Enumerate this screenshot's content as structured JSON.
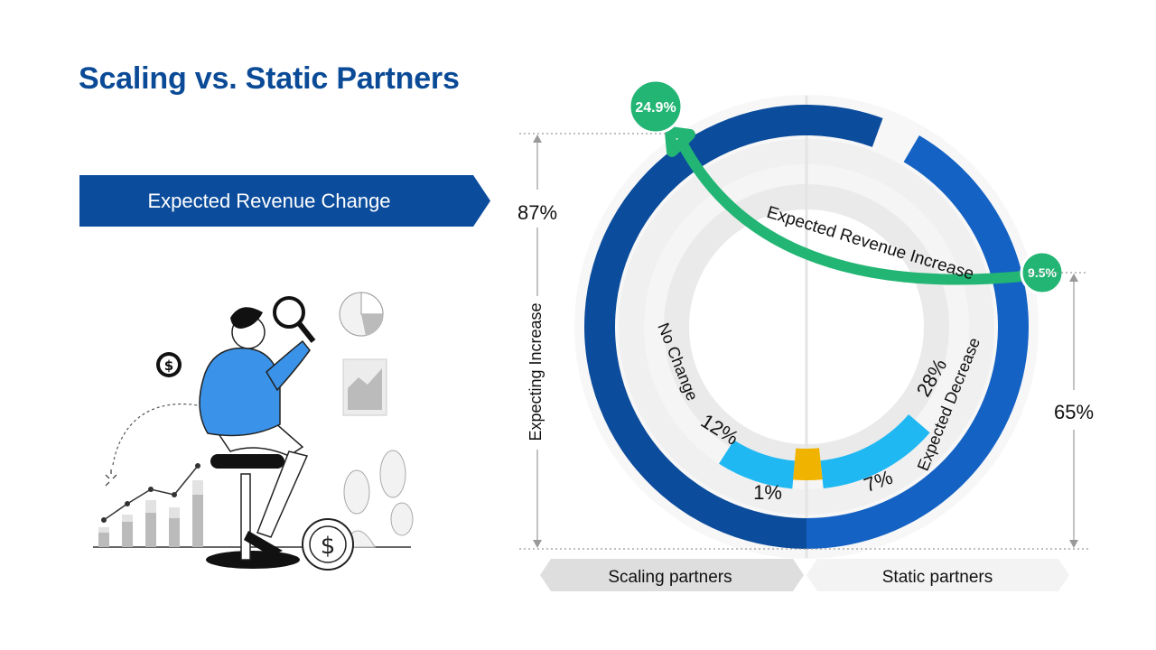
{
  "title": "Scaling vs. Static Partners",
  "banner": {
    "label": "Expected Revenue Change"
  },
  "colors": {
    "title": "#0a4a96",
    "banner": "#0b4c9c",
    "scaling_increase": "#0b4c9c",
    "static_increase": "#1462c4",
    "no_change": "#20b8f2",
    "decrease": "#f0b400",
    "growth_arrow": "#22b573",
    "track": "#f2f2f2"
  },
  "chart_data": {
    "type": "pie",
    "groups": [
      "Scaling partners",
      "Static partners"
    ],
    "series": [
      {
        "name": "Expecting Increase",
        "values": [
          87,
          65
        ]
      },
      {
        "name": "No Change",
        "values": [
          12,
          28
        ]
      },
      {
        "name": "Expected Decrease",
        "values": [
          1,
          7
        ]
      }
    ],
    "ring_labels": {
      "increase": "Expecting Increase",
      "no_change": "No Change",
      "decrease": "Expected Decrease"
    },
    "value_labels": {
      "scaling_increase": "87%",
      "static_increase": "65%",
      "scaling_no_change": "12%",
      "static_no_change": "28%",
      "scaling_decrease": "1%",
      "static_decrease": "7%"
    },
    "revenue_increase": {
      "label": "Expected Revenue Increase",
      "scaling": 24.9,
      "static": 9.5,
      "scaling_label": "24.9%",
      "static_label": "9.5%"
    }
  }
}
